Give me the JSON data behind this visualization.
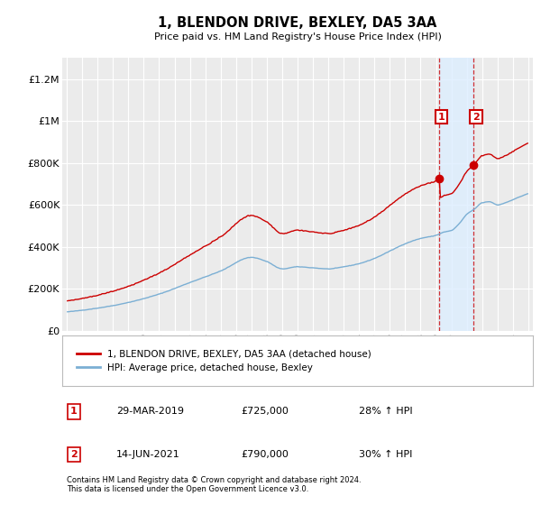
{
  "title": "1, BLENDON DRIVE, BEXLEY, DA5 3AA",
  "subtitle": "Price paid vs. HM Land Registry's House Price Index (HPI)",
  "background_color": "#ffffff",
  "plot_bg_color": "#ebebeb",
  "grid_color": "#ffffff",
  "sale1": {
    "date_num": 2019.22,
    "price": 725000,
    "label": "1",
    "date_str": "29-MAR-2019",
    "pct": "28%"
  },
  "sale2": {
    "date_num": 2021.45,
    "price": 790000,
    "label": "2",
    "date_str": "14-JUN-2021",
    "pct": "30%"
  },
  "hpi_line_color": "#7bafd4",
  "price_line_color": "#cc0000",
  "shade_color": "#ddeeff",
  "legend_label1": "1, BLENDON DRIVE, BEXLEY, DA5 3AA (detached house)",
  "legend_label2": "HPI: Average price, detached house, Bexley",
  "footer": "Contains HM Land Registry data © Crown copyright and database right 2024.\nThis data is licensed under the Open Government Licence v3.0.",
  "ylim": [
    0,
    1300000
  ],
  "yticks": [
    0,
    200000,
    400000,
    600000,
    800000,
    1000000,
    1200000
  ],
  "ytick_labels": [
    "£0",
    "£200K",
    "£400K",
    "£600K",
    "£800K",
    "£1M",
    "£1.2M"
  ],
  "xlim": [
    1994.7,
    2025.3
  ],
  "xticks": [
    1995,
    1996,
    1997,
    1998,
    1999,
    2000,
    2001,
    2002,
    2003,
    2004,
    2005,
    2006,
    2007,
    2008,
    2009,
    2010,
    2011,
    2012,
    2013,
    2014,
    2015,
    2016,
    2017,
    2018,
    2019,
    2020,
    2021,
    2022,
    2023,
    2024,
    2025
  ]
}
